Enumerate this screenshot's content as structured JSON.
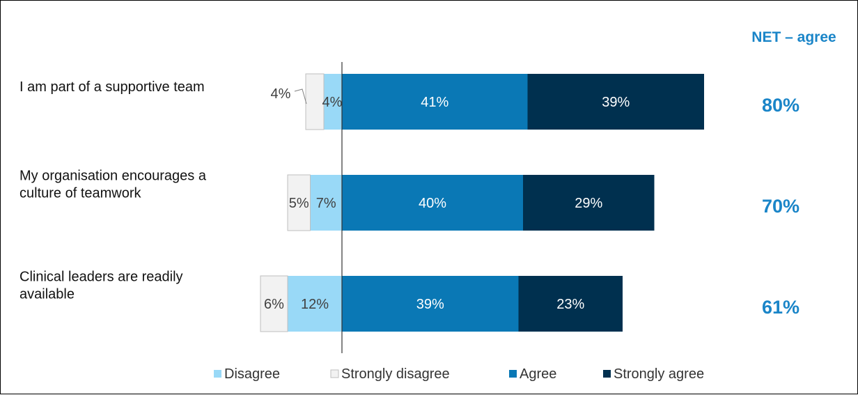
{
  "chart_data": {
    "type": "bar",
    "orientation": "horizontal-diverging-stacked",
    "categories": [
      [
        "I am part of a supportive team"
      ],
      [
        "My organisation encourages a",
        "culture of teamwork"
      ],
      [
        "Clinical leaders are readily",
        "available"
      ]
    ],
    "series": [
      {
        "name": "Disagree",
        "values": [
          4,
          7,
          12
        ],
        "labels": [
          "4%",
          "7%",
          "12%"
        ]
      },
      {
        "name": "Strongly disagree",
        "values": [
          4,
          5,
          6
        ],
        "labels": [
          "4%",
          "5%",
          "6%"
        ]
      },
      {
        "name": "Agree",
        "values": [
          41,
          40,
          39
        ],
        "labels": [
          "41%",
          "40%",
          "39%"
        ]
      },
      {
        "name": "Strongly agree",
        "values": [
          39,
          29,
          23
        ],
        "labels": [
          "39%",
          "29%",
          "23%"
        ]
      }
    ],
    "net": {
      "title": "NET – agree",
      "values": [
        "80%",
        "70%",
        "61%"
      ]
    },
    "colors": {
      "Disagree": "#99d9f7",
      "Strongly disagree": "#f2f2f2",
      "Agree": "#0a78b5",
      "Strongly agree": "#00304f",
      "net_text": "#1a85c8"
    },
    "legend_position": "bottom",
    "grid": false
  }
}
